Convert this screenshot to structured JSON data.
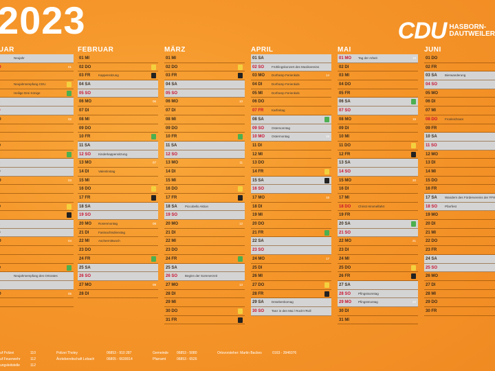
{
  "header": {
    "year": "2023",
    "logo": "CDU",
    "logo_sub_1": "HASBORN-",
    "logo_sub_2": "DAUTWEILER"
  },
  "colors": {
    "weekend_gray": "#d4d4d4",
    "sunday_red": "#c8102e",
    "bin_green": "#4caf50",
    "bin_black": "#222222",
    "bin_yellow": "#f4d03f"
  },
  "months": [
    {
      "title": "NUAR",
      "left": 0,
      "days": [
        {
          "d": "",
          "we": true,
          "ev": "Neujahr"
        },
        {
          "d": "MO",
          "red": true,
          "kw": "01"
        },
        {
          "d": "DI"
        },
        {
          "d": "",
          "ev": "Neujahrsempfang CDU",
          "bin": "yellow"
        },
        {
          "d": "FR",
          "ev": "Heilige Drei Könige",
          "bin": "green"
        },
        {
          "d": "SA",
          "we": true
        },
        {
          "d": "SO",
          "we": true,
          "red": true
        },
        {
          "d": "MO",
          "kw": "02"
        },
        {
          "d": "DI"
        },
        {
          "d": "MI"
        },
        {
          "d": "DO"
        },
        {
          "d": "FR",
          "bin": "green"
        },
        {
          "d": "SA",
          "we": true
        },
        {
          "d": "SO",
          "we": true
        },
        {
          "d": "MO",
          "kw": "03"
        },
        {
          "d": "DI"
        },
        {
          "d": "MI"
        },
        {
          "d": "DO",
          "bin": "yellow"
        },
        {
          "d": "FR",
          "bin": "black"
        },
        {
          "d": "SA",
          "we": true
        },
        {
          "d": "SO",
          "we": true
        },
        {
          "d": "MO",
          "kw": "04"
        },
        {
          "d": "DI"
        },
        {
          "d": "MI"
        },
        {
          "d": "DO",
          "bin": "green"
        },
        {
          "d": "FR",
          "ev": "Neujahrsempfang des Ortsrates",
          "we": true
        },
        {
          "d": "SA",
          "we": true
        },
        {
          "d": "MO",
          "kw": "05"
        },
        {
          "d": "DI"
        }
      ]
    },
    {
      "title": "FEBRUAR",
      "days": [
        {
          "d": "01 MI"
        },
        {
          "d": "02 DO",
          "bin": "yellow"
        },
        {
          "d": "03 FR",
          "ev": "Kappensitzung",
          "bin": "black"
        },
        {
          "d": "04 SA",
          "we": true
        },
        {
          "d": "05 SO",
          "we": true,
          "red": true
        },
        {
          "d": "06 MO",
          "kw": "06"
        },
        {
          "d": "07 DI"
        },
        {
          "d": "08 MI"
        },
        {
          "d": "09 DO"
        },
        {
          "d": "10 FR",
          "bin": "green"
        },
        {
          "d": "11 SA",
          "we": true
        },
        {
          "d": "12 SO",
          "we": true,
          "red": true,
          "ev": "Kinderkappensitzung"
        },
        {
          "d": "13 MO",
          "kw": "07"
        },
        {
          "d": "14 DI",
          "ev": "Valentinstag"
        },
        {
          "d": "15 MI"
        },
        {
          "d": "16 DO",
          "bin": "yellow"
        },
        {
          "d": "17 FR",
          "bin": "black"
        },
        {
          "d": "18 SA",
          "we": true
        },
        {
          "d": "19 SO",
          "we": true,
          "red": true
        },
        {
          "d": "20 MO",
          "ev": "Rosenmontag",
          "kw": "08"
        },
        {
          "d": "21 DI",
          "ev": "Fastnachtsdienstag"
        },
        {
          "d": "22 MI",
          "ev": "Aschermittwoch"
        },
        {
          "d": "23 DO"
        },
        {
          "d": "24 FR",
          "bin": "green"
        },
        {
          "d": "25 SA",
          "we": true
        },
        {
          "d": "26 SO",
          "we": true,
          "red": true
        },
        {
          "d": "27 MO",
          "kw": "09"
        },
        {
          "d": "28 DI"
        }
      ]
    },
    {
      "title": "MÄRZ",
      "days": [
        {
          "d": "01 MI"
        },
        {
          "d": "02 DO",
          "bin": "yellow"
        },
        {
          "d": "03 FR",
          "bin": "black"
        },
        {
          "d": "04 SA",
          "we": true
        },
        {
          "d": "05 SO",
          "we": true,
          "red": true
        },
        {
          "d": "06 MO",
          "kw": "10"
        },
        {
          "d": "07 DI"
        },
        {
          "d": "08 MI"
        },
        {
          "d": "09 DO"
        },
        {
          "d": "10 FR",
          "bin": "green"
        },
        {
          "d": "11 SA",
          "we": true
        },
        {
          "d": "12 SO",
          "we": true,
          "red": true
        },
        {
          "d": "13 MO",
          "kw": "11"
        },
        {
          "d": "14 DI"
        },
        {
          "d": "15 MI"
        },
        {
          "d": "16 DO",
          "bin": "yellow"
        },
        {
          "d": "17 FR",
          "bin": "black"
        },
        {
          "d": "18 SA",
          "we": true,
          "ev": "Piccobello Aktion"
        },
        {
          "d": "19 SO",
          "we": true,
          "red": true
        },
        {
          "d": "20 MO",
          "kw": "12"
        },
        {
          "d": "21 DI"
        },
        {
          "d": "22 MI"
        },
        {
          "d": "23 DO"
        },
        {
          "d": "24 FR",
          "bin": "green"
        },
        {
          "d": "25 SA",
          "we": true
        },
        {
          "d": "26 SO",
          "we": true,
          "red": true,
          "ev": "Beginn der Sommerzeit"
        },
        {
          "d": "27 MO",
          "kw": "13"
        },
        {
          "d": "28 DI"
        },
        {
          "d": "29 MI"
        },
        {
          "d": "30 DO",
          "bin": "yellow"
        },
        {
          "d": "31 FR",
          "bin": "black"
        }
      ]
    },
    {
      "title": "APRIL",
      "days": [
        {
          "d": "01 SA",
          "we": true
        },
        {
          "d": "02 SO",
          "we": true,
          "red": true,
          "ev": "Frühlingskonzert des Musikvereins"
        },
        {
          "d": "03 MO",
          "ev": "Dorframp Ferienkids",
          "kw": "14"
        },
        {
          "d": "04 DI",
          "ev": "Dorframp Ferienkids"
        },
        {
          "d": "05 MI",
          "ev": "Dorframp Ferienkids"
        },
        {
          "d": "06 DO"
        },
        {
          "d": "07 FR",
          "red": true,
          "ev": "Karfreitag"
        },
        {
          "d": "08 SA",
          "we": true,
          "bin": "green"
        },
        {
          "d": "09 SO",
          "we": true,
          "red": true,
          "ev": "Ostersonntag"
        },
        {
          "d": "10 MO",
          "red": true,
          "we": true,
          "ev": "Ostermontag",
          "kw": "15"
        },
        {
          "d": "11 DI"
        },
        {
          "d": "12 MI"
        },
        {
          "d": "13 DO"
        },
        {
          "d": "14 FR",
          "bin": "yellow"
        },
        {
          "d": "15 SA",
          "we": true,
          "bin": "black"
        },
        {
          "d": "16 SO",
          "we": true,
          "red": true
        },
        {
          "d": "17 MO",
          "kw": "16"
        },
        {
          "d": "18 DI"
        },
        {
          "d": "19 MI"
        },
        {
          "d": "20 DO"
        },
        {
          "d": "21 FR",
          "bin": "green"
        },
        {
          "d": "22 SA",
          "we": true
        },
        {
          "d": "23 SO",
          "we": true,
          "red": true
        },
        {
          "d": "24 MO",
          "kw": "17"
        },
        {
          "d": "25 DI"
        },
        {
          "d": "26 MI"
        },
        {
          "d": "27 DO",
          "bin": "yellow"
        },
        {
          "d": "28 FR",
          "bin": "black"
        },
        {
          "d": "29 SA",
          "we": true,
          "ev": "Dösebenbomag"
        },
        {
          "d": "30 SO",
          "we": true,
          "red": true,
          "ev": "Tanz in den Mai / Rock'n'Roll"
        }
      ]
    },
    {
      "title": "MAI",
      "days": [
        {
          "d": "01 MO",
          "red": true,
          "we": true,
          "ev": "Tag der Arbeit",
          "kw": "18"
        },
        {
          "d": "02 DI"
        },
        {
          "d": "03 MI"
        },
        {
          "d": "04 DO"
        },
        {
          "d": "05 FR"
        },
        {
          "d": "06 SA",
          "we": true,
          "bin": "green"
        },
        {
          "d": "07 SO",
          "we": true,
          "red": true
        },
        {
          "d": "08 MO",
          "kw": "19"
        },
        {
          "d": "09 DI"
        },
        {
          "d": "10 MI"
        },
        {
          "d": "11 DO",
          "bin": "yellow"
        },
        {
          "d": "12 FR",
          "bin": "black"
        },
        {
          "d": "13 SA",
          "we": true
        },
        {
          "d": "14 SO",
          "we": true,
          "red": true
        },
        {
          "d": "15 MO",
          "kw": "20"
        },
        {
          "d": "16 DI"
        },
        {
          "d": "17 MI"
        },
        {
          "d": "18 DO",
          "red": true,
          "ev": "Christi Himmelfahrt"
        },
        {
          "d": "19 FR"
        },
        {
          "d": "20 SA",
          "we": true,
          "bin": "green"
        },
        {
          "d": "21 SO",
          "we": true,
          "red": true
        },
        {
          "d": "22 MO",
          "kw": "21"
        },
        {
          "d": "23 DI"
        },
        {
          "d": "24 MI"
        },
        {
          "d": "25 DO",
          "bin": "yellow"
        },
        {
          "d": "26 FR",
          "bin": "black"
        },
        {
          "d": "27 SA",
          "we": true
        },
        {
          "d": "28 SO",
          "we": true,
          "red": true,
          "ev": "Pfingstsonntag"
        },
        {
          "d": "29 MO",
          "red": true,
          "we": true,
          "ev": "Pfingstmontag",
          "kw": "22"
        },
        {
          "d": "30 DI"
        },
        {
          "d": "31 MI"
        }
      ]
    },
    {
      "title": "JUNI",
      "days": [
        {
          "d": "01 DO",
          "bin": "green"
        },
        {
          "d": "02 FR"
        },
        {
          "d": "03 SA",
          "we": true,
          "ev": "Bierwanderung"
        },
        {
          "d": "04 SO",
          "we": true,
          "red": true
        },
        {
          "d": "05 MO"
        },
        {
          "d": "06 DI"
        },
        {
          "d": "07 MI"
        },
        {
          "d": "08 DO",
          "red": true,
          "ev": "Fronleichnam"
        },
        {
          "d": "09 FR",
          "bin": "black"
        },
        {
          "d": "10 SA",
          "we": true
        },
        {
          "d": "11 SO",
          "we": true,
          "red": true
        },
        {
          "d": "12 MO"
        },
        {
          "d": "13 DI"
        },
        {
          "d": "14 MI"
        },
        {
          "d": "15 DO"
        },
        {
          "d": "16 FR",
          "bin": "green"
        },
        {
          "d": "17 SA",
          "we": true,
          "ev": "Wandern des Fördervereins der FFW"
        },
        {
          "d": "18 SO",
          "we": true,
          "red": true,
          "ev": "Pfarrfest"
        },
        {
          "d": "19 MO"
        },
        {
          "d": "20 DI"
        },
        {
          "d": "21 MI"
        },
        {
          "d": "22 DO",
          "bin": "yellow"
        },
        {
          "d": "23 FR",
          "bin": "black"
        },
        {
          "d": "24 SA",
          "we": true
        },
        {
          "d": "25 SO",
          "we": true,
          "red": true
        },
        {
          "d": "26 MO"
        },
        {
          "d": "27 DI"
        },
        {
          "d": "28 MI"
        },
        {
          "d": "29 DO"
        },
        {
          "d": "30 FR",
          "bin": "green"
        }
      ]
    }
  ],
  "footer": {
    "col1": [
      "uf Polizei",
      "uf Feuerwehr",
      "ungsleitstelle"
    ],
    "col1n": [
      "110",
      "112",
      "112"
    ],
    "col2": [
      "Polizei Tholey",
      "Ärztebereitschaft Lebach"
    ],
    "col2n": [
      "06853 - 910 287",
      "06805 - 6630014"
    ],
    "col3": [
      "Gemeinde",
      "Pfarramt"
    ],
    "col3n": [
      "06853 - 5080",
      "06853 - 6526"
    ],
    "col4": "Ortsvorsteher: Martin Backes",
    "col4n": "0163 - 3946076"
  }
}
